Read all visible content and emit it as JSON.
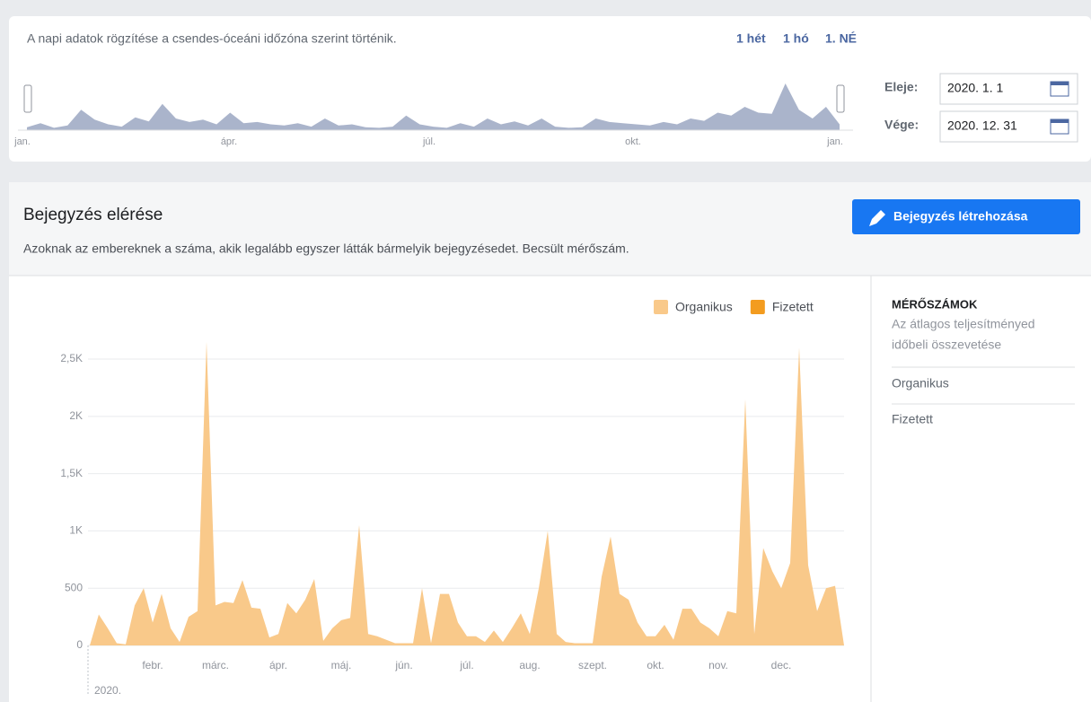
{
  "header": {
    "note": "A napi adatok rögzítése a csendes-óceáni időzóna szerint történik.",
    "ranges": [
      "1 hét",
      "1 hó",
      "1. NÉ"
    ],
    "start_label": "Eleje:",
    "start_value": "2020. 1. 1",
    "end_label": "Vége:",
    "end_value": "2020. 12. 31"
  },
  "overview": {
    "type": "area",
    "color": "#aab4cb",
    "ylim": [
      0,
      100
    ],
    "values": [
      5,
      12,
      4,
      8,
      35,
      18,
      10,
      6,
      22,
      15,
      45,
      20,
      14,
      18,
      10,
      30,
      12,
      14,
      10,
      8,
      12,
      6,
      20,
      8,
      10,
      5,
      4,
      6,
      25,
      10,
      6,
      4,
      12,
      6,
      20,
      10,
      15,
      8,
      20,
      6,
      4,
      5,
      20,
      14,
      12,
      10,
      8,
      14,
      10,
      20,
      16,
      30,
      25,
      40,
      30,
      28,
      80,
      35,
      20,
      40,
      10
    ],
    "months": [
      "jan.",
      "ápr.",
      "júl.",
      "okt.",
      "jan."
    ]
  },
  "section": {
    "title": "Bejegyzés elérése",
    "description": "Azoknak az embereknek a száma, akik legalább egyszer látták bármelyik bejegyzésedet. Becsült mérőszám.",
    "button": "Bejegyzés létrehozása"
  },
  "chart_data": {
    "type": "area",
    "months": [
      "febr.",
      "márc.",
      "ápr.",
      "máj.",
      "jún.",
      "júl.",
      "aug.",
      "szept.",
      "okt.",
      "nov.",
      "dec."
    ],
    "year": "2020.",
    "legend": [
      {
        "name": "Organikus",
        "color": "#f9c98a"
      },
      {
        "name": "Fizetett",
        "color": "#f39c1f"
      }
    ],
    "series": [
      {
        "name": "Organikus",
        "color": "#f9c98a",
        "values": [
          0,
          270,
          150,
          20,
          10,
          350,
          500,
          200,
          450,
          150,
          30,
          250,
          300,
          2650,
          350,
          380,
          370,
          570,
          330,
          320,
          70,
          100,
          370,
          280,
          400,
          580,
          40,
          150,
          220,
          240,
          1050,
          100,
          80,
          50,
          20,
          20,
          20,
          500,
          20,
          450,
          450,
          200,
          80,
          80,
          30,
          130,
          30,
          150,
          280,
          100,
          500,
          1000,
          100,
          30,
          20,
          20,
          20,
          600,
          950,
          450,
          400,
          200,
          80,
          80,
          180,
          50,
          320,
          320,
          200,
          150,
          80,
          300,
          280,
          2150,
          100,
          850,
          650,
          500,
          720,
          2600,
          700,
          300,
          500,
          520,
          0
        ]
      }
    ],
    "ylim": [
      0,
      2700
    ],
    "yticks": [
      0,
      500,
      {
        "value": 1000,
        "label": "1K"
      },
      {
        "value": 1500,
        "label": "1,5K"
      },
      {
        "value": 2000,
        "label": "2K"
      },
      {
        "value": 2500,
        "label": "2,5K"
      }
    ],
    "grid": true
  },
  "sidebar": {
    "title": "MÉRŐSZÁMOK",
    "subtitle_lines": [
      "Az átlagos teljesítményed",
      "időbeli összevetése"
    ],
    "items": [
      "Organikus",
      "Fizetett"
    ]
  }
}
